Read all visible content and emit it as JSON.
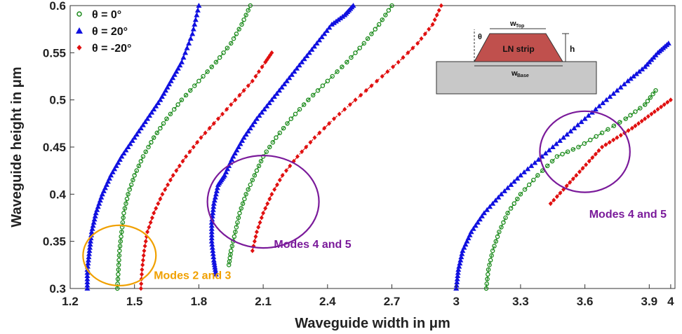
{
  "chart_data": {
    "type": "scatter",
    "xlabel": "Waveguide width in μm",
    "ylabel": "Waveguide height in μm",
    "xlim": [
      1.2,
      4.02
    ],
    "ylim": [
      0.3,
      0.6
    ],
    "xticks": [
      "1.2",
      "1.5",
      "1.8",
      "2.1",
      "2.4",
      "2.7",
      "3",
      "3.3",
      "3.6",
      "3.9",
      "4"
    ],
    "xtick_values": [
      1.2,
      1.5,
      1.8,
      2.1,
      2.4,
      2.7,
      3.0,
      3.3,
      3.6,
      3.9,
      4.0
    ],
    "yticks": [
      "0.3",
      "0.35",
      "0.4",
      "0.45",
      "0.5",
      "0.55",
      "0.6"
    ],
    "ytick_values": [
      0.3,
      0.35,
      0.4,
      0.45,
      0.5,
      0.55,
      0.6
    ],
    "grid": false,
    "legend_position": "top-left",
    "series": [
      {
        "name": "θ = 0°",
        "color": "#1a8a1a",
        "marker": "circle",
        "line": "dashed",
        "branches": [
          {
            "x": [
              1.42,
              1.425,
              1.43,
              1.44,
              1.45,
              1.47,
              1.5,
              1.54,
              1.59,
              1.65,
              1.72,
              1.8,
              1.88,
              1.95,
              2.0,
              2.04
            ],
            "y": [
              0.3,
              0.32,
              0.34,
              0.36,
              0.38,
              0.4,
              0.42,
              0.44,
              0.46,
              0.48,
              0.5,
              0.52,
              0.54,
              0.56,
              0.58,
              0.6
            ]
          },
          {
            "x": [
              1.94,
              1.95,
              1.97,
              1.99,
              2.02,
              2.06,
              2.1,
              2.16,
              2.23,
              2.31,
              2.4,
              2.49,
              2.57,
              2.64,
              2.7
            ],
            "y": [
              0.325,
              0.34,
              0.36,
              0.38,
              0.4,
              0.42,
              0.44,
              0.46,
              0.48,
              0.5,
              0.52,
              0.54,
              0.56,
              0.58,
              0.6
            ]
          },
          {
            "x": [
              3.14,
              3.15,
              3.17,
              3.2,
              3.24,
              3.3,
              3.38,
              3.47,
              3.57,
              3.68,
              3.79,
              3.88,
              3.93
            ],
            "y": [
              0.3,
              0.32,
              0.34,
              0.36,
              0.38,
              0.4,
              0.42,
              0.44,
              0.45,
              0.465,
              0.48,
              0.495,
              0.51
            ]
          }
        ]
      },
      {
        "name": "θ = 20°",
        "color": "#1010e0",
        "marker": "triangle",
        "line": "solid",
        "branches": [
          {
            "x": [
              1.28,
              1.28,
              1.29,
              1.3,
              1.32,
              1.35,
              1.39,
              1.44,
              1.5,
              1.56,
              1.62,
              1.67,
              1.72,
              1.77,
              1.8
            ],
            "y": [
              0.3,
              0.32,
              0.34,
              0.36,
              0.38,
              0.4,
              0.42,
              0.44,
              0.46,
              0.48,
              0.5,
              0.52,
              0.54,
              0.57,
              0.6
            ]
          },
          {
            "x": [
              1.88,
              1.87,
              1.86,
              1.86,
              1.87,
              1.89,
              1.92,
              1.96,
              2.01,
              2.07,
              2.14,
              2.21,
              2.28,
              2.35,
              2.42,
              2.48,
              2.52
            ],
            "y": [
              0.315,
              0.33,
              0.35,
              0.37,
              0.39,
              0.41,
              0.42,
              0.44,
              0.46,
              0.48,
              0.5,
              0.52,
              0.54,
              0.56,
              0.58,
              0.59,
              0.6
            ]
          },
          {
            "x": [
              3.0,
              3.01,
              3.03,
              3.07,
              3.13,
              3.21,
              3.3,
              3.4,
              3.5,
              3.6,
              3.7,
              3.8,
              3.88,
              3.94,
              3.99
            ],
            "y": [
              0.3,
              0.32,
              0.34,
              0.36,
              0.38,
              0.4,
              0.42,
              0.44,
              0.46,
              0.48,
              0.5,
              0.52,
              0.535,
              0.55,
              0.56
            ]
          }
        ]
      },
      {
        "name": "θ = -20°",
        "color": "#e01010",
        "marker": "diamond",
        "line": "dashdot",
        "branches": [
          {
            "x": [
              1.53,
              1.535,
              1.545,
              1.56,
              1.59,
              1.63,
              1.68,
              1.74,
              1.81,
              1.89,
              1.97,
              2.05,
              2.11,
              2.14
            ],
            "y": [
              0.3,
              0.32,
              0.34,
              0.36,
              0.38,
              0.4,
              0.42,
              0.44,
              0.46,
              0.48,
              0.5,
              0.52,
              0.54,
              0.55
            ]
          },
          {
            "x": [
              2.05,
              2.07,
              2.1,
              2.14,
              2.19,
              2.26,
              2.34,
              2.43,
              2.53,
              2.63,
              2.73,
              2.82,
              2.89,
              2.93
            ],
            "y": [
              0.34,
              0.36,
              0.38,
              0.4,
              0.42,
              0.44,
              0.46,
              0.48,
              0.5,
              0.52,
              0.54,
              0.56,
              0.58,
              0.6
            ]
          },
          {
            "x": [
              3.44,
              3.5,
              3.56,
              3.62,
              3.68,
              3.75,
              3.82,
              3.88,
              3.94,
              4.0
            ],
            "y": [
              0.39,
              0.405,
              0.42,
              0.435,
              0.45,
              0.46,
              0.47,
              0.48,
              0.49,
              0.5
            ]
          }
        ]
      }
    ],
    "annotations": [
      {
        "text": "Modes 2 and 3",
        "color": "#f0a000",
        "ellipse": {
          "cx": 1.43,
          "cy": 0.335,
          "rx": 0.17,
          "ry": 0.032
        },
        "label_x": 1.59,
        "label_y": 0.31
      },
      {
        "text": "Modes 4 and 5",
        "color": "#7a1a9a",
        "ellipse": {
          "cx": 2.1,
          "cy": 0.392,
          "rx": 0.26,
          "ry": 0.049
        },
        "label_x": 2.15,
        "label_y": 0.343
      },
      {
        "text": "Modes 4 and 5",
        "color": "#7a1a9a",
        "ellipse": {
          "cx": 3.6,
          "cy": 0.445,
          "rx": 0.21,
          "ry": 0.043
        },
        "label_x": 3.62,
        "label_y": 0.375
      }
    ],
    "inset": {
      "strip_label": "LN strip",
      "top_label": "w",
      "top_sub": "Top",
      "base_label": "w",
      "base_sub": "Base",
      "height_label": "h",
      "angle_label": "θ",
      "strip_color": "#c0504d",
      "substrate_color": "#c8c8c8"
    }
  }
}
